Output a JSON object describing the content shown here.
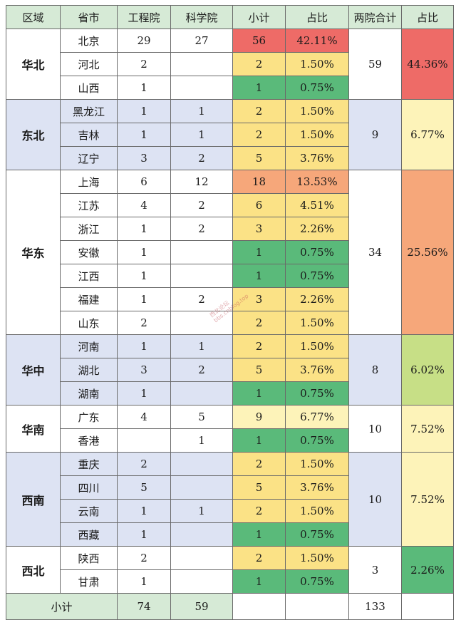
{
  "headers": [
    "区域",
    "省市",
    "工程院",
    "科学院",
    "小计",
    "占比",
    "两院合计",
    "占比"
  ],
  "regions": [
    {
      "name": "华北",
      "total": "59",
      "pct": "44.36%",
      "pct_color": "red",
      "bg": "white",
      "rows": [
        {
          "prov": "北京",
          "gc": "29",
          "kx": "27",
          "sub": "56",
          "share": "42.11%",
          "color": "red"
        },
        {
          "prov": "河北",
          "gc": "2",
          "kx": "",
          "sub": "2",
          "share": "1.50%",
          "color": "yellow"
        },
        {
          "prov": "山西",
          "gc": "1",
          "kx": "",
          "sub": "1",
          "share": "0.75%",
          "color": "green"
        }
      ]
    },
    {
      "name": "东北",
      "total": "9",
      "pct": "6.77%",
      "pct_color": "lyellow",
      "bg": "blue",
      "rows": [
        {
          "prov": "黑龙江",
          "gc": "1",
          "kx": "1",
          "sub": "2",
          "share": "1.50%",
          "color": "yellow"
        },
        {
          "prov": "吉林",
          "gc": "1",
          "kx": "1",
          "sub": "2",
          "share": "1.50%",
          "color": "yellow"
        },
        {
          "prov": "辽宁",
          "gc": "3",
          "kx": "2",
          "sub": "5",
          "share": "3.76%",
          "color": "yellow"
        }
      ]
    },
    {
      "name": "华东",
      "total": "34",
      "pct": "25.56%",
      "pct_color": "orange",
      "bg": "white",
      "rows": [
        {
          "prov": "上海",
          "gc": "6",
          "kx": "12",
          "sub": "18",
          "share": "13.53%",
          "color": "orange"
        },
        {
          "prov": "江苏",
          "gc": "4",
          "kx": "2",
          "sub": "6",
          "share": "4.51%",
          "color": "yellow"
        },
        {
          "prov": "浙江",
          "gc": "1",
          "kx": "2",
          "sub": "3",
          "share": "2.26%",
          "color": "yellow"
        },
        {
          "prov": "安徽",
          "gc": "1",
          "kx": "",
          "sub": "1",
          "share": "0.75%",
          "color": "green"
        },
        {
          "prov": "江西",
          "gc": "1",
          "kx": "",
          "sub": "1",
          "share": "0.75%",
          "color": "green"
        },
        {
          "prov": "福建",
          "gc": "1",
          "kx": "2",
          "sub": "3",
          "share": "2.26%",
          "color": "yellow"
        },
        {
          "prov": "山东",
          "gc": "2",
          "kx": "",
          "sub": "2",
          "share": "1.50%",
          "color": "yellow"
        }
      ]
    },
    {
      "name": "华中",
      "total": "8",
      "pct": "6.02%",
      "pct_color": "lgreen",
      "bg": "blue",
      "rows": [
        {
          "prov": "河南",
          "gc": "1",
          "kx": "1",
          "sub": "2",
          "share": "1.50%",
          "color": "yellow"
        },
        {
          "prov": "湖北",
          "gc": "3",
          "kx": "2",
          "sub": "5",
          "share": "3.76%",
          "color": "yellow"
        },
        {
          "prov": "湖南",
          "gc": "1",
          "kx": "",
          "sub": "1",
          "share": "0.75%",
          "color": "green"
        }
      ]
    },
    {
      "name": "华南",
      "total": "10",
      "pct": "7.52%",
      "pct_color": "lyellow",
      "bg": "white",
      "rows": [
        {
          "prov": "广东",
          "gc": "4",
          "kx": "5",
          "sub": "9",
          "share": "6.77%",
          "color": "lyellow"
        },
        {
          "prov": "香港",
          "gc": "",
          "kx": "1",
          "sub": "1",
          "share": "0.75%",
          "color": "green"
        }
      ]
    },
    {
      "name": "西南",
      "total": "10",
      "pct": "7.52%",
      "pct_color": "lyellow",
      "bg": "blue",
      "rows": [
        {
          "prov": "重庆",
          "gc": "2",
          "kx": "",
          "sub": "2",
          "share": "1.50%",
          "color": "yellow"
        },
        {
          "prov": "四川",
          "gc": "5",
          "kx": "",
          "sub": "5",
          "share": "3.76%",
          "color": "yellow"
        },
        {
          "prov": "云南",
          "gc": "1",
          "kx": "1",
          "sub": "2",
          "share": "1.50%",
          "color": "yellow"
        },
        {
          "prov": "西藏",
          "gc": "1",
          "kx": "",
          "sub": "1",
          "share": "0.75%",
          "color": "green"
        }
      ]
    },
    {
      "name": "西北",
      "total": "3",
      "pct": "2.26%",
      "pct_color": "green",
      "bg": "white",
      "rows": [
        {
          "prov": "陕西",
          "gc": "2",
          "kx": "",
          "sub": "2",
          "share": "1.50%",
          "color": "yellow"
        },
        {
          "prov": "甘肃",
          "gc": "1",
          "kx": "",
          "sub": "1",
          "share": "0.75%",
          "color": "green"
        }
      ]
    }
  ],
  "footer": {
    "label": "小计",
    "gc": "74",
    "kx": "59",
    "sub": "",
    "share": "",
    "total": "133",
    "pct": ""
  },
  "watermark": [
    "西北论坛",
    "bbs.cnblog.top"
  ],
  "colors": {
    "red": "#ee6b67",
    "orange": "#f6a77a",
    "yellow": "#fbe286",
    "lyellow": "#fdf3b9",
    "green": "#5aba7a",
    "lgreen": "#c7df86",
    "blue_row": "#dde3f3",
    "header": "#d6ead6"
  }
}
